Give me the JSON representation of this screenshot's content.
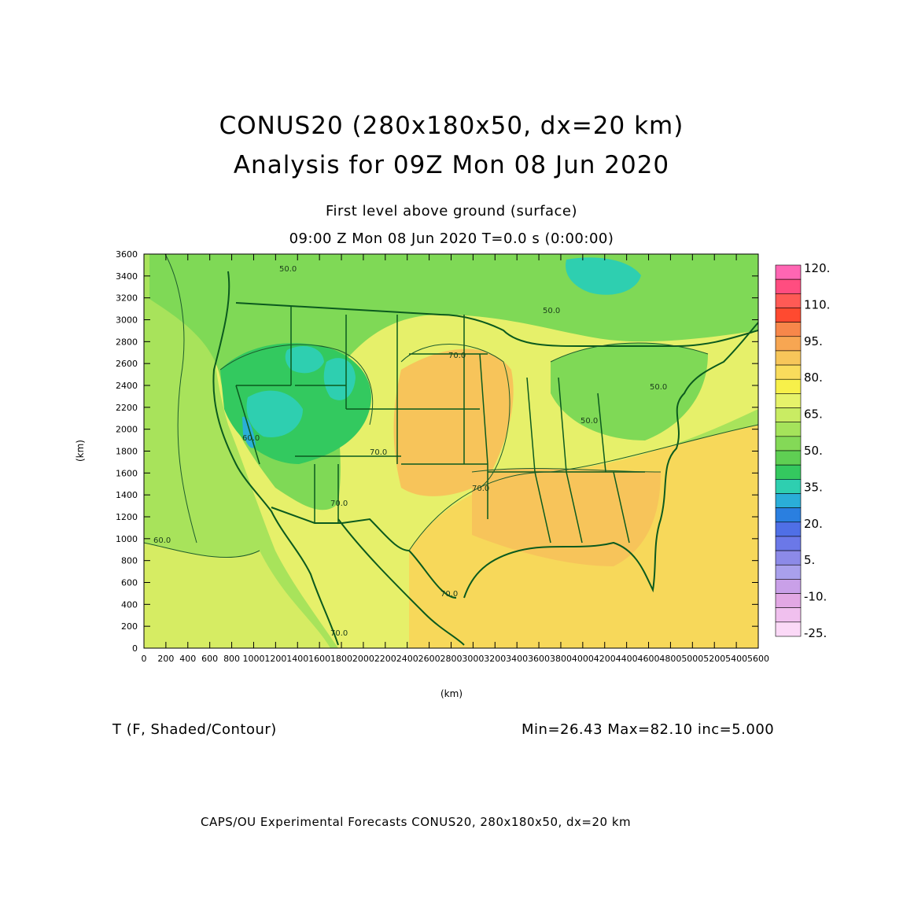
{
  "title_line1": "CONUS20 (280x180x50, dx=20 km)",
  "title_line2": "Analysis for 09Z Mon 08 Jun 2020",
  "level_label": "First level above ground (surface)",
  "time_label": "09:00 Z Mon 08 Jun 2020    T=0.0 s (0:00:00)",
  "variable_label": "T (F, Shaded/Contour)",
  "stats_label": "Min=26.43 Max=82.10 inc=5.000",
  "footer": "CAPS/OU Experimental Forecasts  CONUS20, 280x180x50, dx=20 km",
  "axes": {
    "x_label": "(km)",
    "y_label": "(km)",
    "x_range": [
      0,
      5600
    ],
    "y_range": [
      0,
      3600
    ],
    "x_ticks": [
      "0",
      "200",
      "400",
      "600",
      "800",
      "1000",
      "1200",
      "1400",
      "1600",
      "1800",
      "2000",
      "2200",
      "2400",
      "2600",
      "2800",
      "3000",
      "3200",
      "3400",
      "3600",
      "3800",
      "4000",
      "4200",
      "4400",
      "4600",
      "4800",
      "5000",
      "5200",
      "5400",
      "5600"
    ],
    "y_ticks": [
      "0",
      "200",
      "400",
      "600",
      "800",
      "1000",
      "1200",
      "1400",
      "1600",
      "1800",
      "2000",
      "2200",
      "2400",
      "2600",
      "2800",
      "3000",
      "3200",
      "3400",
      "3600"
    ]
  },
  "contour_labels": [
    "50.0",
    "60.0",
    "70.0",
    "70.0",
    "50.0",
    "50.0",
    "70.0",
    "70.0",
    "70.0",
    "50.0",
    "60.0",
    "70.0"
  ],
  "colorbar": {
    "labels": [
      "120.",
      "110.",
      "95.",
      "80.",
      "65.",
      "50.",
      "35.",
      "20.",
      "5.",
      "-10.",
      "-25."
    ],
    "colors": [
      "#ff66b3",
      "#ff4d80",
      "#ff5a55",
      "#ff4a30",
      "#f7874a",
      "#f7a652",
      "#f7c65a",
      "#f9dc5c",
      "#f7f04a",
      "#e6f26a",
      "#c9ec63",
      "#a5e35b",
      "#84d957",
      "#5fcf53",
      "#34c85f",
      "#2ecfb0",
      "#2aaed8",
      "#2a7fe0",
      "#4f6fe6",
      "#6b78e8",
      "#8c8ae8",
      "#a9a0ec",
      "#c9a0e8",
      "#e2a8e4",
      "#f0c0ee",
      "#fbd9f7"
    ]
  },
  "map_colors": {
    "ocean_pacific": "#a8e35b",
    "ocean_south": "#d6ec63",
    "warm_gulf": "#f7d85a",
    "hot": "#f7c45a",
    "mild": "#e6f06a",
    "cool": "#7fd956",
    "cold": "#33c95f",
    "colder": "#2ecfb0",
    "coldest": "#2aaed8",
    "boundary": "#0b5a1e"
  }
}
